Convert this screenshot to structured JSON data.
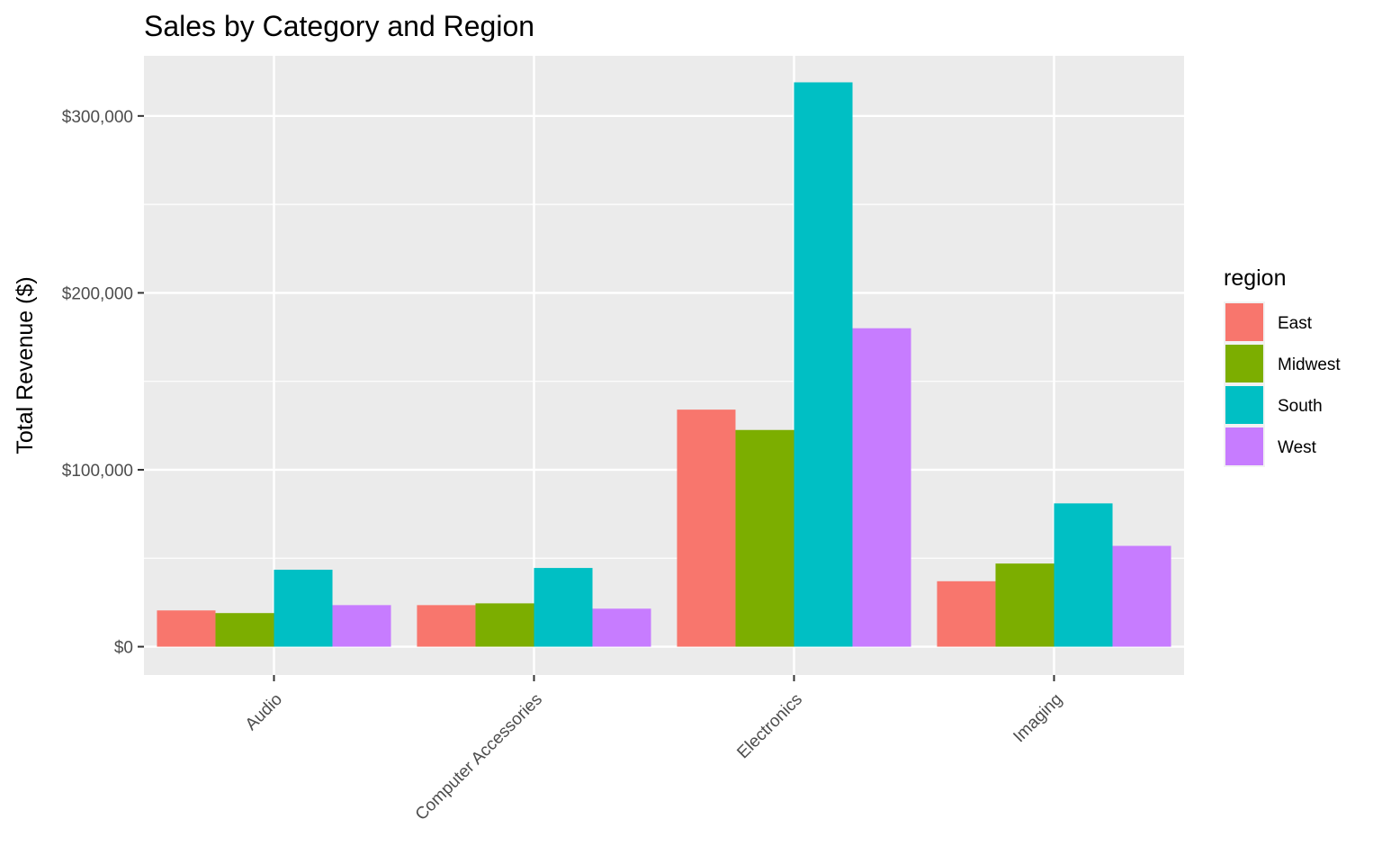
{
  "chart_data": {
    "type": "bar",
    "title": "Sales by Category and Region",
    "xlabel": "",
    "ylabel": "Total Revenue ($)",
    "categories": [
      "Audio",
      "Computer Accessories",
      "Electronics",
      "Imaging"
    ],
    "series": [
      {
        "name": "East",
        "color": "#F8766D",
        "values": [
          20500,
          23500,
          134000,
          37000
        ]
      },
      {
        "name": "Midwest",
        "color": "#7CAE00",
        "values": [
          19000,
          24500,
          122500,
          47000
        ]
      },
      {
        "name": "South",
        "color": "#00BFC4",
        "values": [
          43500,
          44500,
          319000,
          81000
        ]
      },
      {
        "name": "West",
        "color": "#C77CFF",
        "values": [
          23500,
          21500,
          180000,
          57000
        ]
      }
    ],
    "ylim": [
      -16000,
      334000
    ],
    "yticks": [
      0,
      100000,
      200000,
      300000
    ],
    "ytick_labels": [
      "$0",
      "$100,000",
      "$200,000",
      "$300,000"
    ],
    "legend": {
      "title": "region",
      "position": "right"
    },
    "grid": true,
    "panel_background": "#EBEBEB",
    "x_tick_label_rotation": -45
  }
}
